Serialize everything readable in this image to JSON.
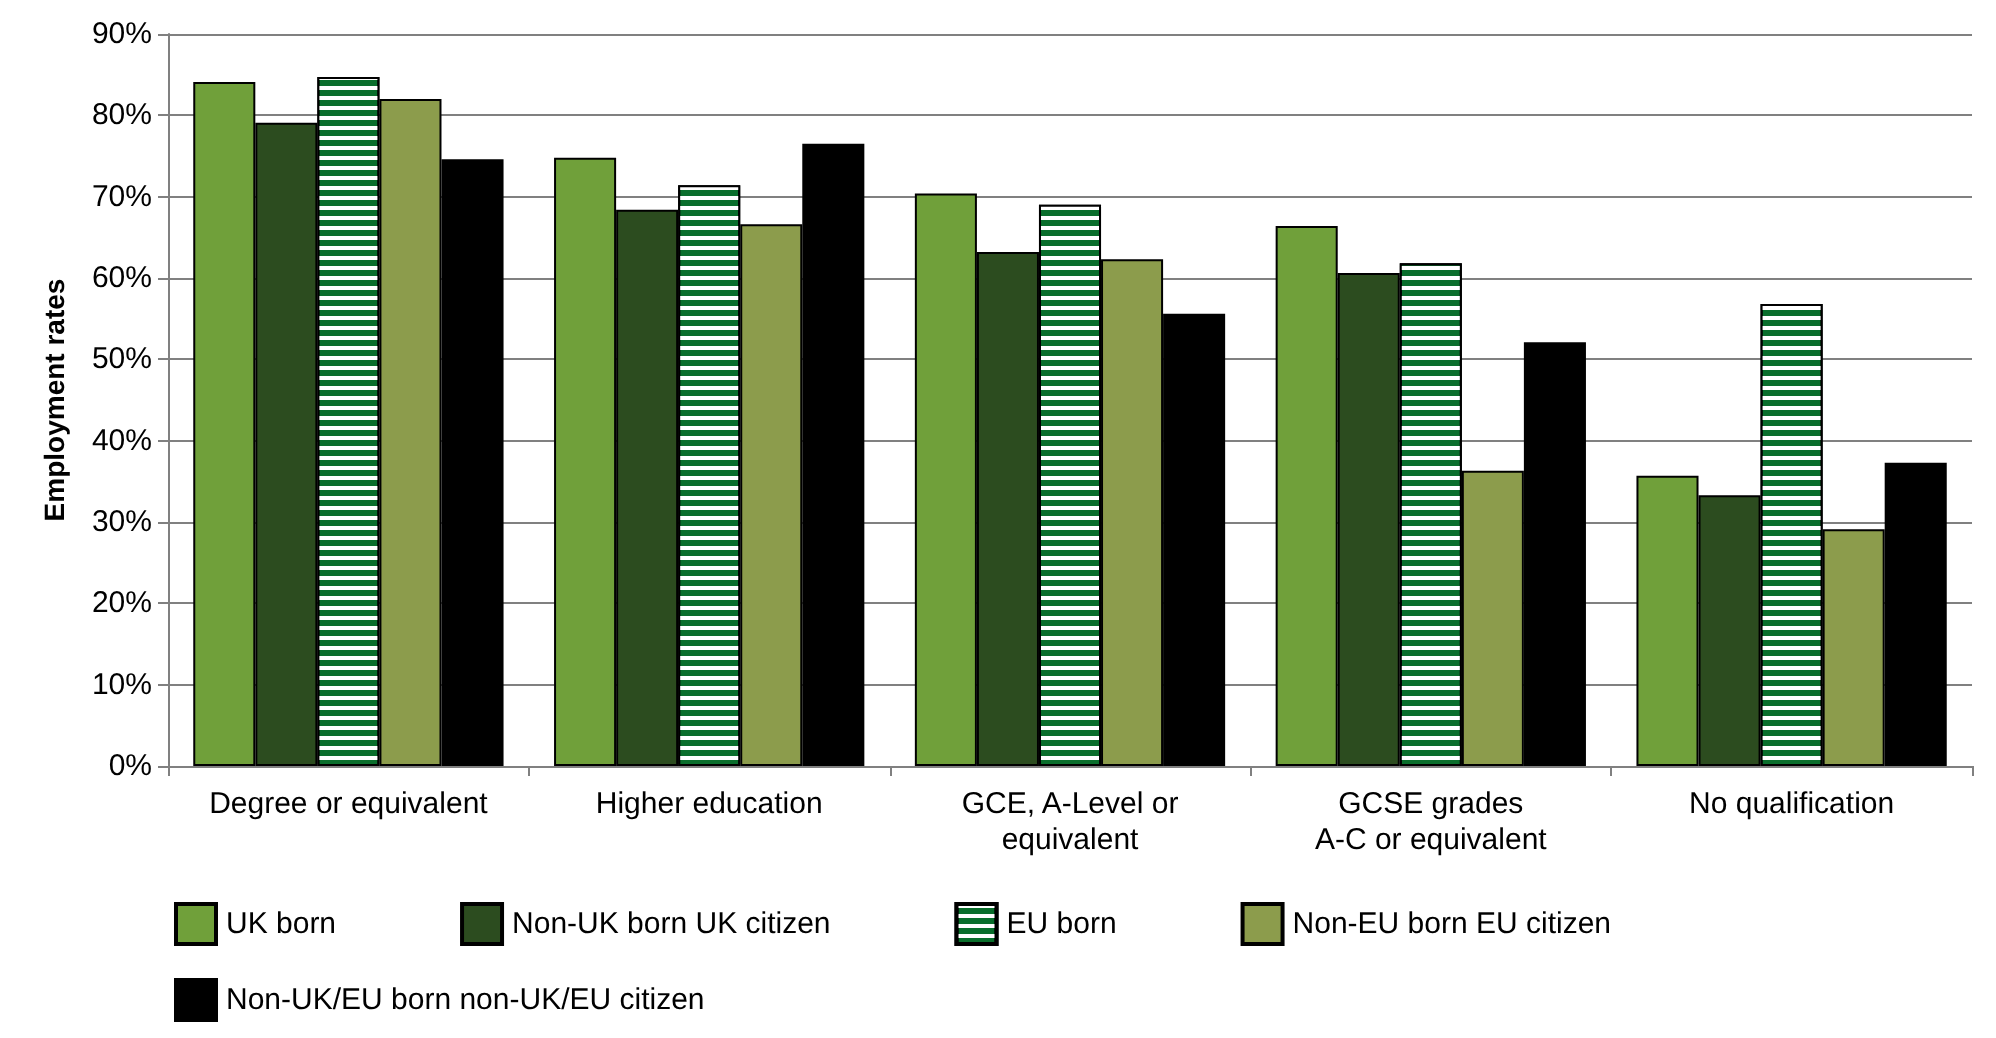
{
  "chart_data": {
    "type": "bar",
    "ylabel": "Employment rates",
    "categories": [
      "Degree or equivalent",
      "Higher education",
      "GCE, A-Level or\nequivalent",
      "GCSE grades\nA-C or equivalent",
      "No qualification"
    ],
    "series": [
      {
        "name": "UK born",
        "color": "#70a03a",
        "values": [
          84.1,
          74.8,
          70.4,
          66.4,
          35.7
        ]
      },
      {
        "name": "Non-UK born UK citizen",
        "color": "#2c4c1f",
        "values": [
          79.1,
          68.4,
          63.2,
          60.6,
          33.3
        ]
      },
      {
        "name": "EU born",
        "color": "#0a6e2c",
        "values": [
          84.7,
          71.4,
          69.0,
          61.8,
          56.8
        ]
      },
      {
        "name": "Non-EU born EU citizen",
        "color": "#8c9c4c",
        "values": [
          82.0,
          66.6,
          62.3,
          36.3,
          29.1
        ]
      },
      {
        "name": "Non-UK/EU born non-UK/EU citizen",
        "color": "#000000",
        "values": [
          74.6,
          76.5,
          55.6,
          52.1,
          37.3
        ]
      }
    ],
    "ylim": [
      0,
      90
    ],
    "yticks": [
      {
        "value": 0,
        "label": "0%"
      },
      {
        "value": 10,
        "label": "10%"
      },
      {
        "value": 20,
        "label": "20%"
      },
      {
        "value": 30,
        "label": "30%"
      },
      {
        "value": 40,
        "label": "40%"
      },
      {
        "value": 50,
        "label": "50%"
      },
      {
        "value": 60,
        "label": "60%"
      },
      {
        "value": 70,
        "label": "70%"
      },
      {
        "value": 80,
        "label": "80%"
      },
      {
        "value": 90,
        "label": "90%"
      }
    ],
    "grid": "y",
    "legend": "bottom"
  }
}
